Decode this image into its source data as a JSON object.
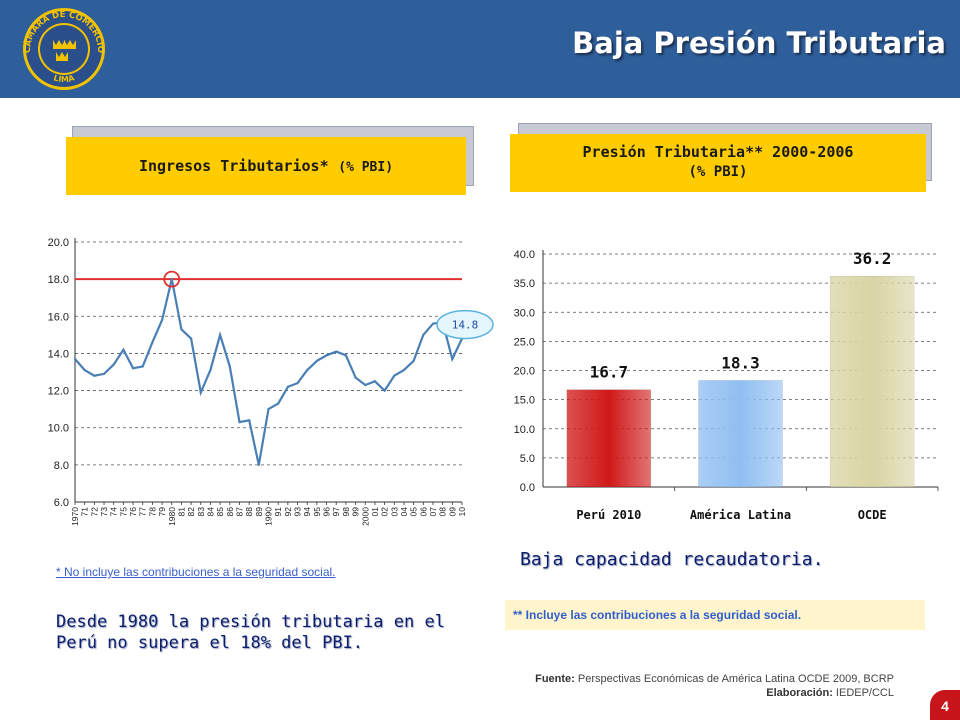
{
  "header": {
    "title": "Baja Presión Tributaria",
    "logo_text_top": "CÁMARA DE COMERCIO",
    "logo_text_bottom": "LIMA",
    "colors": {
      "bar": "#2f5f9b",
      "logo_ring": "#f2c200"
    }
  },
  "left_panel": {
    "title_main": "Ingresos Tributarios*",
    "title_unit": "(% PBI)",
    "footnote": "* No incluye las contribuciones a la seguridad social.",
    "description": "Desde 1980 la presión tributaria en el Perú no supera el 18% del PBI."
  },
  "right_panel": {
    "title_line1": "Presión Tributaria** 2000-2006",
    "title_line2": "(% PBI)",
    "description": "Baja capacidad recaudatoria.",
    "note": "** Incluye las contribuciones a la seguridad social."
  },
  "source": {
    "fuente_label": "Fuente:",
    "fuente_text": "Perspectivas Económicas de América Latina OCDE 2009, BCRP",
    "elaboracion_label": "Elaboración:",
    "elaboracion_text": "IEDEP/CCL"
  },
  "page_number": "4",
  "chart_data": [
    {
      "type": "line",
      "x": [
        "1970",
        "71",
        "72",
        "73",
        "74",
        "75",
        "76",
        "77",
        "78",
        "79",
        "1980",
        "81",
        "82",
        "83",
        "84",
        "85",
        "86",
        "87",
        "88",
        "89",
        "1990",
        "91",
        "92",
        "93",
        "94",
        "95",
        "96",
        "97",
        "98",
        "99",
        "2000",
        "01",
        "02",
        "03",
        "04",
        "05",
        "06",
        "07",
        "08",
        "09",
        "10"
      ],
      "series": [
        {
          "values": [
            13.7,
            13.1,
            12.8,
            12.9,
            13.4,
            14.2,
            13.2,
            13.3,
            14.6,
            15.8,
            18.0,
            15.3,
            14.8,
            11.9,
            13.1,
            15.0,
            13.3,
            10.3,
            10.4,
            8.0,
            11.0,
            11.3,
            12.2,
            12.4,
            13.1,
            13.6,
            13.9,
            14.1,
            13.9,
            12.7,
            12.3,
            12.5,
            12.0,
            12.8,
            13.1,
            13.6,
            15.0,
            15.6,
            15.7,
            13.7,
            14.8
          ],
          "color": "#4a7fb5"
        }
      ],
      "reference_line": {
        "value": 18.0,
        "color": "#e03030"
      },
      "highlight": {
        "x": "1980",
        "value": 18.0
      },
      "annotation": "14.8",
      "ylim": [
        6.0,
        20.0
      ],
      "yticks": [
        "20.0",
        "18.0",
        "16.0",
        "14.0",
        "12.0",
        "10.0",
        "8.0",
        "6.0"
      ],
      "grid": true
    },
    {
      "type": "bar",
      "categories": [
        "Perú 2010",
        "América Latina",
        "OCDE"
      ],
      "values": [
        16.7,
        18.3,
        36.2
      ],
      "data_labels": [
        "16.7",
        "18.3",
        "36.2"
      ],
      "colors": [
        "#d01818",
        "#8fbef2",
        "#d8d4a4"
      ],
      "ylim": [
        0.0,
        40.0
      ],
      "yticks": [
        "40.0",
        "35.0",
        "30.0",
        "25.0",
        "20.0",
        "15.0",
        "10.0",
        "5.0",
        "0.0"
      ],
      "grid": true
    }
  ]
}
